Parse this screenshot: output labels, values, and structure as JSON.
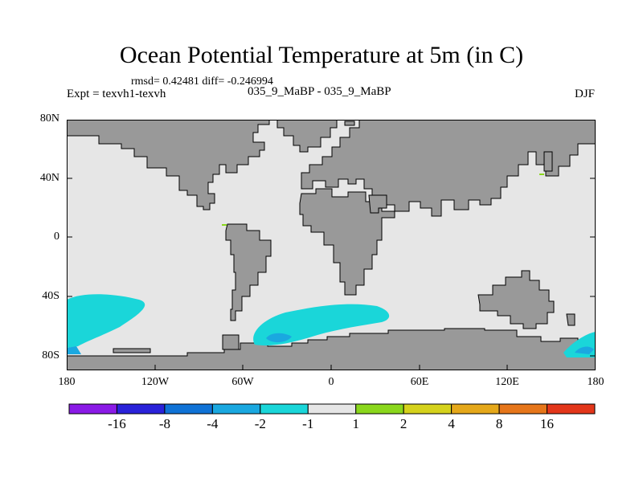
{
  "title": "Ocean Potential Temperature at 5m (in C)",
  "stats_text": "rmsd= 0.42481 diff= -0.246994",
  "experiment_text": "Expt = texvh1-texvh",
  "run_text": "035_9_MaBP - 035_9_MaBP",
  "season": "DJF",
  "y_axis": {
    "range_deg": [
      -90,
      80
    ],
    "tick_labels": [
      "80N",
      "40N",
      "0",
      "40S",
      "80S"
    ]
  },
  "x_axis": {
    "range_deg": [
      -180,
      180
    ],
    "tick_labels": [
      "180",
      "120W",
      "60W",
      "0",
      "60E",
      "120E",
      "180"
    ]
  },
  "colors": {
    "ocean": "#e6e6e6",
    "land": "#999999",
    "anomaly_minus_2_to_minus_1": "#1ad6d9",
    "anomaly_minus_4_to_minus_2": "#1aa8e0",
    "anomaly_1_to_2": "#8ad71c"
  },
  "colorbar": {
    "labels": [
      "-16",
      "-8",
      "-4",
      "-2",
      "-1",
      "1",
      "2",
      "4",
      "8",
      "16"
    ],
    "colors": [
      "#8a1ae6",
      "#2a22d9",
      "#0f72d6",
      "#1aa8e0",
      "#1ad6d9",
      "#e6e6e6",
      "#8ad71c",
      "#d5d21c",
      "#e5a81a",
      "#e6761a",
      "#e3361a"
    ]
  }
}
